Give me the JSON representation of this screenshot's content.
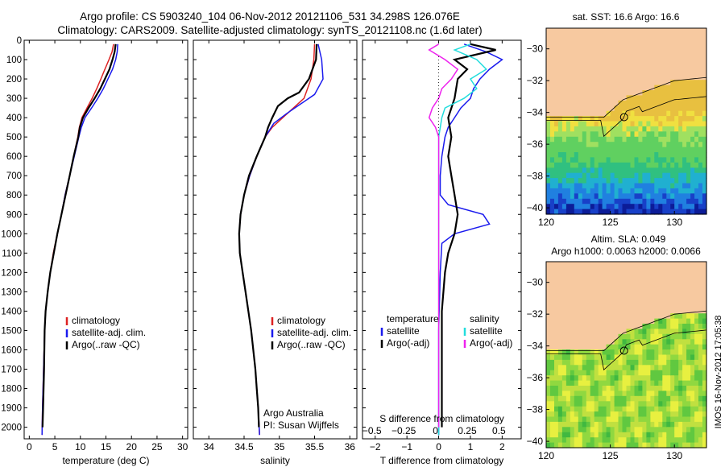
{
  "header": {
    "line1": "Argo profile: CS 5903240_104 06-Nov-2012 20121106_531 34.298S 126.076E",
    "line2": "Climatology: CARS2009. Satellite-adjusted climatology: synTS_20121108.nc (1.6d later)"
  },
  "colors": {
    "climatology": "#dd2222",
    "satellite": "#1a1aee",
    "argo": "#000000",
    "sat_salinity": "#22dddd",
    "argo_salinity": "#ee22ee",
    "land": "#f7c9a0"
  },
  "side_label": "IMOS 16-Nov-2012 17:05:38",
  "chart_data": [
    {
      "id": "temperature",
      "type": "line",
      "xlabel": "temperature (deg C)",
      "ylabel": "",
      "xlim": [
        -1,
        31
      ],
      "ylim": [
        2060,
        0
      ],
      "xticks": [
        0,
        5,
        10,
        15,
        20,
        25,
        30
      ],
      "yticks": [
        0,
        100,
        200,
        300,
        400,
        500,
        600,
        700,
        800,
        900,
        1000,
        1100,
        1200,
        1300,
        1400,
        1500,
        1600,
        1700,
        1800,
        1900,
        2000
      ],
      "legend": [
        "climatology",
        "satellite-adj. clim.",
        "Argo(..raw -QC)"
      ],
      "series": [
        {
          "name": "climatology",
          "color": "#dd2222",
          "points": [
            [
              16.5,
              20
            ],
            [
              16.2,
              60
            ],
            [
              15.6,
              100
            ],
            [
              14.8,
              150
            ],
            [
              14.0,
              200
            ],
            [
              13.2,
              250
            ],
            [
              12.3,
              300
            ],
            [
              11.3,
              350
            ],
            [
              10.3,
              400
            ],
            [
              9.8,
              450
            ],
            [
              9.5,
              500
            ],
            [
              8.7,
              600
            ],
            [
              7.9,
              700
            ],
            [
              7.0,
              800
            ],
            [
              6.3,
              900
            ],
            [
              5.5,
              1000
            ],
            [
              4.7,
              1100
            ],
            [
              4.1,
              1200
            ],
            [
              3.6,
              1300
            ],
            [
              3.2,
              1400
            ],
            [
              3.0,
              1500
            ],
            [
              2.8,
              1700
            ],
            [
              2.6,
              1900
            ],
            [
              2.5,
              2040
            ]
          ]
        },
        {
          "name": "satellite-adj. clim.",
          "color": "#1a1aee",
          "points": [
            [
              17.3,
              20
            ],
            [
              17.2,
              60
            ],
            [
              16.9,
              100
            ],
            [
              16.3,
              150
            ],
            [
              15.4,
              200
            ],
            [
              14.5,
              250
            ],
            [
              13.4,
              300
            ],
            [
              12.2,
              350
            ],
            [
              10.9,
              400
            ],
            [
              10.2,
              450
            ],
            [
              9.7,
              500
            ],
            [
              8.8,
              600
            ],
            [
              7.9,
              700
            ],
            [
              7.0,
              800
            ],
            [
              6.3,
              900
            ],
            [
              5.5,
              1000
            ],
            [
              4.8,
              1100
            ],
            [
              4.1,
              1200
            ],
            [
              3.6,
              1300
            ],
            [
              3.2,
              1400
            ],
            [
              3.0,
              1500
            ],
            [
              2.8,
              1700
            ],
            [
              2.6,
              1900
            ],
            [
              2.5,
              2040
            ]
          ]
        },
        {
          "name": "Argo(..raw -QC)",
          "color": "#000000",
          "points": [
            [
              16.9,
              20
            ],
            [
              16.7,
              60
            ],
            [
              16.3,
              100
            ],
            [
              15.7,
              150
            ],
            [
              14.8,
              200
            ],
            [
              13.9,
              250
            ],
            [
              12.8,
              300
            ],
            [
              11.6,
              350
            ],
            [
              10.5,
              400
            ],
            [
              9.9,
              450
            ],
            [
              9.6,
              500
            ],
            [
              8.7,
              600
            ],
            [
              7.9,
              700
            ],
            [
              7.1,
              800
            ],
            [
              6.3,
              900
            ],
            [
              5.5,
              1000
            ],
            [
              4.8,
              1100
            ],
            [
              4.1,
              1200
            ],
            [
              3.6,
              1300
            ],
            [
              3.2,
              1400
            ],
            [
              3.0,
              1500
            ],
            [
              2.9,
              1700
            ],
            [
              2.7,
              1900
            ],
            [
              2.6,
              2000
            ]
          ]
        }
      ]
    },
    {
      "id": "salinity",
      "type": "line",
      "xlabel": "salinity",
      "ylabel": "",
      "xlim": [
        33.78,
        36.1
      ],
      "ylim": [
        2060,
        0
      ],
      "xticks": [
        34,
        34.5,
        35,
        35.5,
        36
      ],
      "legend": [
        "climatology",
        "satellite-adj. clim.",
        "Argo(..raw -QC)"
      ],
      "annotation": [
        "Argo Australia",
        "PI: Susan Wijffels"
      ],
      "series": [
        {
          "name": "climatology",
          "color": "#dd2222",
          "points": [
            [
              35.5,
              20
            ],
            [
              35.49,
              100
            ],
            [
              35.45,
              200
            ],
            [
              35.35,
              300
            ],
            [
              35.2,
              350
            ],
            [
              35.05,
              400
            ],
            [
              34.9,
              450
            ],
            [
              34.8,
              500
            ],
            [
              34.68,
              600
            ],
            [
              34.58,
              700
            ],
            [
              34.5,
              800
            ],
            [
              34.45,
              900
            ],
            [
              34.43,
              1000
            ],
            [
              34.44,
              1100
            ],
            [
              34.48,
              1200
            ],
            [
              34.52,
              1300
            ],
            [
              34.56,
              1400
            ],
            [
              34.6,
              1500
            ],
            [
              34.63,
              1600
            ],
            [
              34.66,
              1700
            ],
            [
              34.68,
              1800
            ],
            [
              34.7,
              1900
            ],
            [
              34.72,
              2040
            ]
          ]
        },
        {
          "name": "satellite-adj. clim.",
          "color": "#1a1aee",
          "points": [
            [
              35.55,
              20
            ],
            [
              35.6,
              100
            ],
            [
              35.62,
              200
            ],
            [
              35.5,
              280
            ],
            [
              35.3,
              330
            ],
            [
              35.1,
              380
            ],
            [
              34.92,
              430
            ],
            [
              34.8,
              500
            ],
            [
              34.68,
              600
            ],
            [
              34.58,
              700
            ],
            [
              34.5,
              800
            ],
            [
              34.45,
              900
            ],
            [
              34.43,
              1000
            ],
            [
              34.44,
              1100
            ],
            [
              34.48,
              1200
            ],
            [
              34.52,
              1300
            ],
            [
              34.56,
              1400
            ],
            [
              34.6,
              1500
            ],
            [
              34.63,
              1600
            ],
            [
              34.66,
              1700
            ],
            [
              34.68,
              1800
            ],
            [
              34.7,
              1900
            ],
            [
              34.72,
              2040
            ]
          ]
        },
        {
          "name": "Argo(..raw -QC)",
          "color": "#000000",
          "points": [
            [
              35.53,
              20
            ],
            [
              35.52,
              100
            ],
            [
              35.42,
              200
            ],
            [
              35.28,
              270
            ],
            [
              35.12,
              300
            ],
            [
              34.98,
              340
            ],
            [
              34.9,
              400
            ],
            [
              34.84,
              450
            ],
            [
              34.8,
              500
            ],
            [
              34.68,
              600
            ],
            [
              34.57,
              700
            ],
            [
              34.5,
              800
            ],
            [
              34.45,
              900
            ],
            [
              34.43,
              1000
            ],
            [
              34.44,
              1100
            ],
            [
              34.48,
              1200
            ],
            [
              34.52,
              1300
            ],
            [
              34.56,
              1400
            ],
            [
              34.6,
              1500
            ],
            [
              34.63,
              1600
            ],
            [
              34.66,
              1700
            ],
            [
              34.68,
              1800
            ],
            [
              34.7,
              1900
            ],
            [
              34.71,
              2000
            ]
          ]
        }
      ]
    },
    {
      "id": "difference",
      "type": "line",
      "xlabel": "T difference from climatology",
      "xlabel2": "S difference from climatology",
      "xlim": [
        -2.4,
        2.6
      ],
      "ylim": [
        2060,
        0
      ],
      "xticks": [
        -2,
        -1,
        0,
        1,
        2
      ],
      "xtick_labels": [
        "−2",
        "−1",
        "0",
        "1",
        "2"
      ],
      "sticks": [
        "−0.5",
        "−0.25",
        "0",
        "0.25",
        "0.5"
      ],
      "legend_temperature": {
        "title": "temperature",
        "items": [
          "satellite",
          "Argo(-adj)"
        ]
      },
      "legend_salinity": {
        "title": "salinity",
        "items": [
          "satellite",
          "Argo(-adj)"
        ]
      },
      "series": [
        {
          "name": "satellite",
          "color": "#1a1aee",
          "points": [
            [
              0.8,
              20
            ],
            [
              1.5,
              60
            ],
            [
              2.0,
              100
            ],
            [
              1.6,
              150
            ],
            [
              1.3,
              200
            ],
            [
              1.1,
              250
            ],
            [
              1.0,
              300
            ],
            [
              0.7,
              350
            ],
            [
              0.5,
              400
            ],
            [
              0.3,
              450
            ],
            [
              0.2,
              500
            ],
            [
              0.1,
              600
            ],
            [
              0.05,
              700
            ],
            [
              0.05,
              800
            ],
            [
              0.3,
              850
            ],
            [
              1.4,
              900
            ],
            [
              1.6,
              950
            ],
            [
              0.5,
              1000
            ],
            [
              0.1,
              1050
            ],
            [
              0.05,
              1200
            ],
            [
              0.0,
              1500
            ],
            [
              0.0,
              2040
            ]
          ]
        },
        {
          "name": "Argo(-adj)",
          "color": "#000000",
          "points": [
            [
              1.0,
              20
            ],
            [
              1.8,
              50
            ],
            [
              0.5,
              100
            ],
            [
              0.9,
              150
            ],
            [
              0.6,
              200
            ],
            [
              0.5,
              300
            ],
            [
              0.3,
              400
            ],
            [
              0.4,
              500
            ],
            [
              0.3,
              600
            ],
            [
              0.4,
              700
            ],
            [
              0.5,
              800
            ],
            [
              0.6,
              900
            ],
            [
              0.5,
              1000
            ],
            [
              0.3,
              1100
            ],
            [
              0.2,
              1200
            ],
            [
              0.1,
              1400
            ],
            [
              0.1,
              1700
            ],
            [
              0.1,
              2000
            ]
          ]
        },
        {
          "name": "satellite",
          "color": "#22dddd",
          "points": [
            [
              1.0,
              20
            ],
            [
              0.5,
              50
            ],
            [
              1.2,
              100
            ],
            [
              1.5,
              150
            ],
            [
              1.0,
              200
            ],
            [
              1.2,
              250
            ],
            [
              0.8,
              300
            ],
            [
              0.2,
              350
            ],
            [
              0.1,
              400
            ],
            [
              0.0,
              500
            ],
            [
              0.0,
              700
            ],
            [
              0.0,
              1000
            ],
            [
              0.0,
              1500
            ],
            [
              0.0,
              2040
            ]
          ]
        },
        {
          "name": "Argo(-adj)",
          "color": "#ee22ee",
          "points": [
            [
              0.0,
              20
            ],
            [
              -0.3,
              50
            ],
            [
              0.2,
              100
            ],
            [
              0.6,
              150
            ],
            [
              0.4,
              200
            ],
            [
              0.1,
              250
            ],
            [
              0.0,
              300
            ],
            [
              -0.2,
              350
            ],
            [
              -0.3,
              400
            ],
            [
              -0.1,
              450
            ],
            [
              0.0,
              500
            ],
            [
              0.0,
              700
            ],
            [
              0.0,
              1000
            ],
            [
              0.0,
              1500
            ],
            [
              0.0,
              2000
            ]
          ]
        }
      ]
    },
    {
      "id": "sst_map",
      "type": "heatmap",
      "title": "sat. SST: 16.6 Argo: 16.6",
      "xlim": [
        120,
        132.5
      ],
      "ylim": [
        -40.4,
        -28.7
      ],
      "xticks": [
        120,
        125,
        130
      ],
      "yticks": [
        -30,
        -32,
        -34,
        -36,
        -38,
        -40
      ],
      "marker": {
        "lon": 126.076,
        "lat": -34.298
      }
    },
    {
      "id": "sla_map",
      "type": "heatmap",
      "title": "Altim. SLA: 0.049",
      "subtitle": "Argo h1000: 0.0063 h2000: 0.0066",
      "xlim": [
        120,
        132.5
      ],
      "ylim": [
        -40.4,
        -28.7
      ],
      "xticks": [
        120,
        125,
        130
      ],
      "yticks": [
        -30,
        -32,
        -34,
        -36,
        -38,
        -40
      ],
      "marker": {
        "lon": 126.076,
        "lat": -34.298
      }
    }
  ]
}
